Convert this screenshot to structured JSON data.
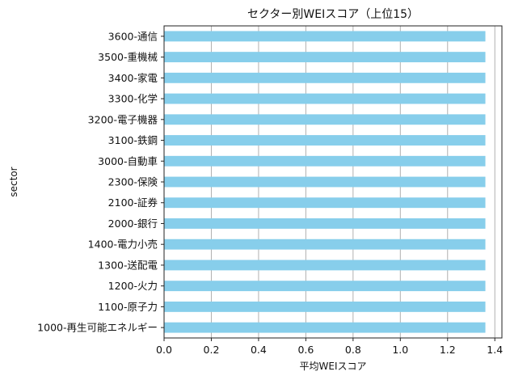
{
  "chart_data": {
    "type": "bar",
    "orientation": "horizontal",
    "title": "セクター別WEIスコア（上位15）",
    "xlabel": "平均WEIスコア",
    "ylabel": "sector",
    "categories": [
      "3600-通信",
      "3500-重機械",
      "3400-家電",
      "3300-化学",
      "3200-電子機器",
      "3100-鉄鋼",
      "3000-自動車",
      "2300-保険",
      "2100-証券",
      "2000-銀行",
      "1400-電力小売",
      "1300-送配電",
      "1200-火力",
      "1100-原子力",
      "1000-再生可能エネルギー"
    ],
    "values": [
      1.36,
      1.36,
      1.36,
      1.36,
      1.36,
      1.36,
      1.36,
      1.36,
      1.36,
      1.36,
      1.36,
      1.36,
      1.36,
      1.36,
      1.36
    ],
    "xlim": [
      0,
      1.43
    ],
    "xticks": [
      "0.0",
      "0.2",
      "0.4",
      "0.6",
      "0.8",
      "1.0",
      "1.2",
      "1.4"
    ],
    "xtick_values": [
      0,
      0.2,
      0.4,
      0.6,
      0.8,
      1.0,
      1.2,
      1.4
    ],
    "grid": "vertical",
    "bar_color": "#87ceeb",
    "grid_color": "#b0b0b0"
  }
}
